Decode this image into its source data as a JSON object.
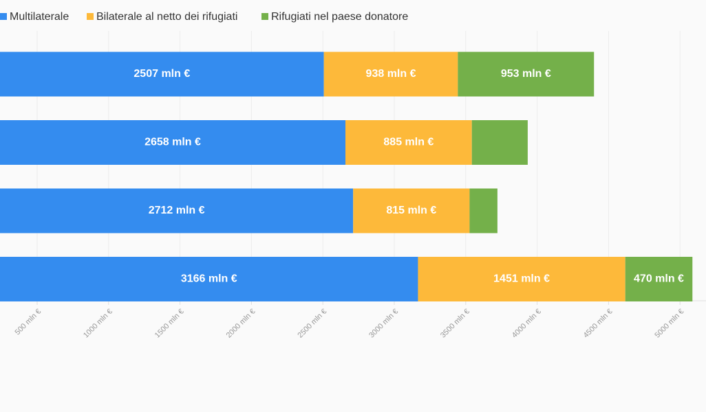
{
  "chart_data": {
    "type": "stacked_barh",
    "categories": [
      null,
      null,
      null,
      null
    ],
    "series": [
      {
        "name": "Multilaterale",
        "color": "#348cef",
        "values": [
          2507,
          2658,
          2712,
          3166
        ],
        "value_labels": [
          "2507 mln €",
          "2658 mln €",
          "2712 mln €",
          "3166 mln €"
        ]
      },
      {
        "name": "Bilaterale al netto dei rifugiati",
        "color": "#fdb93a",
        "values": [
          938,
          885,
          815,
          1451
        ],
        "value_labels": [
          "938 mln €",
          "885 mln €",
          "815 mln €",
          "1451 mln €"
        ]
      },
      {
        "name": "Rifugiati nel paese donatore",
        "color": "#74b04a",
        "values": [
          953,
          391,
          195,
          470
        ],
        "value_labels": [
          "953 mln €",
          null,
          null,
          "470 mln €"
        ]
      }
    ],
    "xlim": [
      240,
      5182
    ],
    "xticks": [
      {
        "value": 500,
        "label": "500 mln €"
      },
      {
        "value": 1000,
        "label": "1000 mln €"
      },
      {
        "value": 1500,
        "label": "1500 mln €"
      },
      {
        "value": 2000,
        "label": "2000 mln €"
      },
      {
        "value": 2500,
        "label": "2500 mln €"
      },
      {
        "value": 3000,
        "label": "3000 mln €"
      },
      {
        "value": 3500,
        "label": "3500 mln €"
      },
      {
        "value": 4000,
        "label": "4000 mln €"
      },
      {
        "value": 4500,
        "label": "4500 mln €"
      },
      {
        "value": 5000,
        "label": "5000 mln €"
      }
    ],
    "grid": true,
    "legend": "top"
  }
}
